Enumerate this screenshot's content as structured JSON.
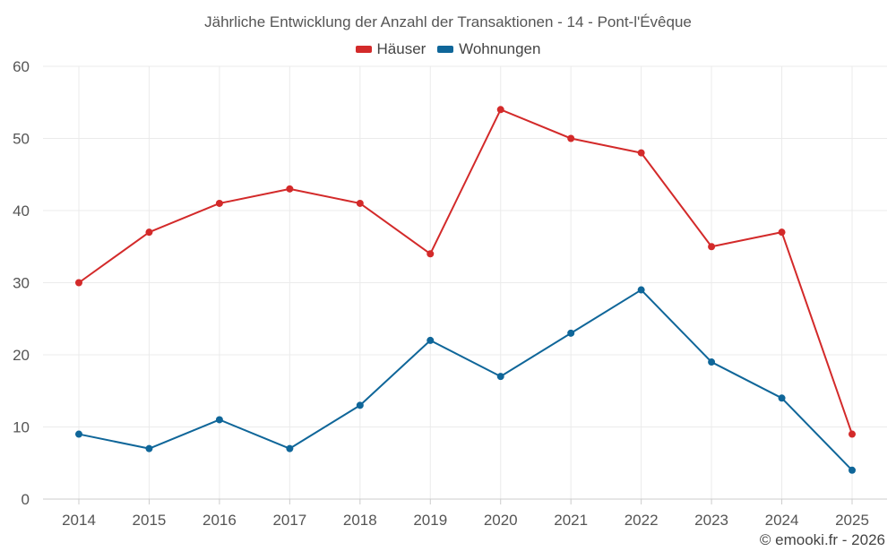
{
  "chart_data": {
    "type": "line",
    "title": "Jährliche Entwicklung der Anzahl der Transaktionen - 14 - Pont-l'Évêque",
    "xlabel": "",
    "ylabel": "",
    "categories": [
      "2014",
      "2015",
      "2016",
      "2017",
      "2018",
      "2019",
      "2020",
      "2021",
      "2022",
      "2023",
      "2024",
      "2025"
    ],
    "ylim": [
      0,
      60
    ],
    "yticks": [
      0,
      10,
      20,
      30,
      40,
      50,
      60
    ],
    "yticks_text": [
      "0",
      "10",
      "20",
      "30",
      "40",
      "50",
      "60"
    ],
    "grid": true,
    "legend_position": "top-center",
    "series": [
      {
        "name": "Häuser",
        "color": "#d32a2a",
        "values": [
          30,
          37,
          41,
          43,
          41,
          34,
          54,
          50,
          48,
          35,
          37,
          9
        ]
      },
      {
        "name": "Wohnungen",
        "color": "#0f6699",
        "values": [
          9,
          7,
          11,
          7,
          13,
          22,
          17,
          23,
          29,
          19,
          14,
          4
        ]
      }
    ]
  },
  "credit": "© emooki.fr - 2026"
}
